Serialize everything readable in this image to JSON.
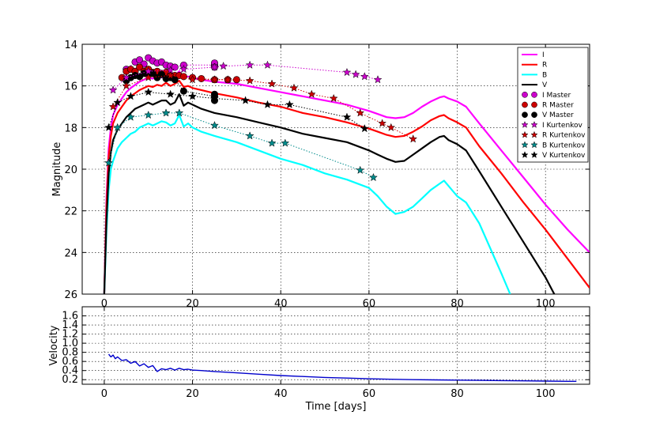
{
  "chart_data": [
    {
      "type": "line",
      "title": "",
      "xlabel": "",
      "ylabel": "Magnitude",
      "xlim": [
        -5,
        110
      ],
      "ylim": [
        26,
        14
      ],
      "y_inverted": true,
      "grid": true,
      "legend_position": "top-right",
      "x_ticks": [
        0,
        20,
        40,
        60,
        80,
        100
      ],
      "x_tick_labels": [
        "0",
        "20",
        "40",
        "60",
        "80",
        "100"
      ],
      "y_ticks": [
        14,
        16,
        18,
        20,
        22,
        24,
        26
      ],
      "y_tick_labels": [
        "14",
        "16",
        "18",
        "20",
        "22",
        "24",
        "26"
      ],
      "series": [
        {
          "name": "I",
          "kind": "model",
          "color": "#ff00ff",
          "x": [
            0,
            0.5,
            1,
            1.5,
            2,
            3,
            4,
            5,
            6,
            7,
            8,
            9,
            10,
            11,
            12,
            13,
            14,
            15,
            16,
            17,
            18,
            19,
            20,
            22,
            25,
            30,
            35,
            40,
            45,
            50,
            55,
            60,
            62,
            64,
            66,
            68,
            70,
            72,
            74,
            76,
            77,
            78,
            80,
            82,
            85,
            90,
            95,
            100,
            105,
            110
          ],
          "y": [
            26,
            21.4,
            19.0,
            18.0,
            17.4,
            16.9,
            16.6,
            16.3,
            16.1,
            15.95,
            15.8,
            15.7,
            15.6,
            15.65,
            15.5,
            15.6,
            15.4,
            15.6,
            15.5,
            15.3,
            15.6,
            15.55,
            15.6,
            15.7,
            15.8,
            15.9,
            16.1,
            16.3,
            16.5,
            16.7,
            16.9,
            17.2,
            17.35,
            17.5,
            17.55,
            17.5,
            17.3,
            17.0,
            16.75,
            16.55,
            16.5,
            16.6,
            16.75,
            17.0,
            17.8,
            19.1,
            20.4,
            21.7,
            22.9,
            24.0
          ]
        },
        {
          "name": "R",
          "kind": "model",
          "color": "#ff0000",
          "x": [
            0,
            0.5,
            1,
            1.5,
            2,
            3,
            4,
            5,
            6,
            7,
            8,
            9,
            10,
            11,
            12,
            13,
            14,
            15,
            16,
            17,
            18,
            19,
            20,
            22,
            25,
            30,
            35,
            40,
            45,
            50,
            55,
            60,
            62,
            64,
            66,
            68,
            70,
            72,
            74,
            76,
            77,
            78,
            80,
            82,
            85,
            90,
            95,
            100,
            105,
            110
          ],
          "y": [
            26,
            21.8,
            19.4,
            18.4,
            17.8,
            17.3,
            17.0,
            16.7,
            16.5,
            16.35,
            16.2,
            16.1,
            16.0,
            16.05,
            15.95,
            16.0,
            15.85,
            16.0,
            15.9,
            15.75,
            16.05,
            16.0,
            16.1,
            16.2,
            16.35,
            16.55,
            16.8,
            17.0,
            17.3,
            17.5,
            17.75,
            18.05,
            18.2,
            18.35,
            18.45,
            18.4,
            18.2,
            17.95,
            17.65,
            17.45,
            17.4,
            17.55,
            17.75,
            18.0,
            18.9,
            20.2,
            21.6,
            22.9,
            24.3,
            25.7
          ]
        },
        {
          "name": "B",
          "kind": "model",
          "color": "#00ffff",
          "x": [
            0,
            0.5,
            1,
            1.5,
            2,
            3,
            4,
            5,
            6,
            7,
            8,
            9,
            10,
            11,
            12,
            13,
            14,
            15,
            16,
            17,
            18,
            19,
            20,
            22,
            25,
            30,
            35,
            40,
            45,
            50,
            55,
            60,
            62,
            64,
            66,
            68,
            70,
            72,
            74,
            76,
            77,
            78,
            80,
            82,
            85,
            90,
            92
          ],
          "y": [
            26,
            23.0,
            21.0,
            20.0,
            19.6,
            19.0,
            18.7,
            18.5,
            18.3,
            18.2,
            18.0,
            17.9,
            17.8,
            17.9,
            17.8,
            17.7,
            17.75,
            17.9,
            17.8,
            17.4,
            17.95,
            17.8,
            18.0,
            18.2,
            18.4,
            18.7,
            19.1,
            19.5,
            19.8,
            20.2,
            20.5,
            20.9,
            21.3,
            21.8,
            22.15,
            22.05,
            21.8,
            21.4,
            21.0,
            20.7,
            20.55,
            20.8,
            21.3,
            21.6,
            22.6,
            25.0,
            26.0
          ]
        },
        {
          "name": "V",
          "kind": "model",
          "color": "#000000",
          "x": [
            0,
            0.5,
            1,
            1.5,
            2,
            3,
            4,
            5,
            6,
            7,
            8,
            9,
            10,
            11,
            12,
            13,
            14,
            15,
            16,
            17,
            18,
            19,
            20,
            22,
            25,
            30,
            35,
            40,
            45,
            50,
            55,
            60,
            62,
            64,
            66,
            68,
            70,
            72,
            74,
            76,
            77,
            78,
            80,
            82,
            85,
            90,
            95,
            100,
            102
          ],
          "y": [
            26,
            22.5,
            20.2,
            19.2,
            18.6,
            18.1,
            17.8,
            17.5,
            17.3,
            17.1,
            17.0,
            16.9,
            16.8,
            16.9,
            16.8,
            16.7,
            16.7,
            16.9,
            16.8,
            16.4,
            16.95,
            16.8,
            16.9,
            17.1,
            17.3,
            17.5,
            17.75,
            18.0,
            18.3,
            18.5,
            18.7,
            19.1,
            19.3,
            19.5,
            19.65,
            19.6,
            19.3,
            19.0,
            18.7,
            18.45,
            18.4,
            18.6,
            18.8,
            19.1,
            20.1,
            21.8,
            23.5,
            25.2,
            26.0
          ]
        },
        {
          "name": "I Master",
          "kind": "circles",
          "color": "#cc00cc",
          "x": [
            5,
            7,
            8,
            9,
            10,
            11,
            12,
            13,
            14,
            15,
            16,
            18,
            25,
            25,
            25
          ],
          "y": [
            15.2,
            14.85,
            14.75,
            14.95,
            14.65,
            14.8,
            14.9,
            14.85,
            15.0,
            15.05,
            15.1,
            15.0,
            15.0,
            14.9,
            15.1
          ]
        },
        {
          "name": "R Master",
          "kind": "circles",
          "color": "#cc0000",
          "x": [
            4,
            5,
            6,
            7,
            8,
            9,
            10,
            11,
            12,
            13,
            14,
            15,
            16,
            17,
            18,
            20,
            22,
            25,
            28,
            30
          ],
          "y": [
            15.6,
            15.3,
            15.2,
            15.3,
            15.1,
            15.3,
            15.2,
            15.35,
            15.3,
            15.4,
            15.35,
            15.5,
            15.5,
            15.5,
            15.55,
            15.6,
            15.65,
            15.7,
            15.7,
            15.7
          ]
        },
        {
          "name": "V Master",
          "kind": "circles",
          "color": "#000000",
          "x": [
            5,
            6,
            7,
            8,
            9,
            10,
            11,
            12,
            13,
            14,
            15,
            16,
            18,
            25,
            25,
            25
          ],
          "y": [
            15.75,
            15.6,
            15.5,
            15.55,
            15.4,
            15.45,
            15.4,
            15.6,
            15.45,
            15.65,
            15.6,
            15.7,
            16.25,
            16.5,
            16.7,
            16.4
          ]
        },
        {
          "name": "I Kurtenkov",
          "kind": "stars",
          "color": "#cc00cc",
          "x": [
            2,
            5,
            10,
            15,
            18,
            25,
            27,
            33,
            37,
            55,
            57,
            59,
            62
          ],
          "y": [
            16.2,
            15.6,
            15.3,
            15.25,
            15.2,
            15.1,
            15.05,
            15.0,
            15.0,
            15.35,
            15.45,
            15.55,
            15.7
          ]
        },
        {
          "name": "R Kurtenkov",
          "kind": "stars",
          "color": "#cc0000",
          "x": [
            2,
            5,
            10,
            15,
            20,
            25,
            28,
            33,
            38,
            43,
            47,
            52,
            58,
            63,
            65,
            70
          ],
          "y": [
            17.0,
            16.0,
            15.6,
            15.5,
            15.7,
            15.7,
            15.7,
            15.75,
            15.9,
            16.1,
            16.4,
            16.6,
            17.3,
            17.8,
            18.0,
            18.55
          ]
        },
        {
          "name": "B Kurtenkov",
          "kind": "stars",
          "color": "#008b8b",
          "x": [
            1,
            3,
            6,
            10,
            14,
            17,
            25,
            33,
            38,
            41,
            58,
            61
          ],
          "y": [
            19.7,
            18.0,
            17.5,
            17.4,
            17.3,
            17.3,
            17.9,
            18.4,
            18.75,
            18.75,
            20.05,
            20.4
          ]
        },
        {
          "name": "V Kurtenkov",
          "kind": "stars",
          "color": "#000000",
          "x": [
            1,
            3,
            6,
            10,
            15,
            20,
            25,
            32,
            37,
            42,
            55,
            59
          ],
          "y": [
            18.0,
            16.8,
            16.5,
            16.3,
            16.4,
            16.5,
            16.6,
            16.7,
            16.9,
            16.9,
            17.5,
            18.05
          ]
        }
      ],
      "legend": [
        "I",
        "R",
        "B",
        "V",
        "I Master",
        "R Master",
        "V Master",
        "I Kurtenkov",
        "R Kurtenkov",
        "B Kurtenkov",
        "V Kurtenkov"
      ]
    },
    {
      "type": "line",
      "title": "",
      "xlabel": "Time [days]",
      "ylabel": "Velocity",
      "xlim": [
        -5,
        110
      ],
      "ylim": [
        0.1,
        1.8
      ],
      "grid": true,
      "x_ticks": [
        0,
        20,
        40,
        60,
        80,
        100
      ],
      "x_tick_labels": [
        "0",
        "20",
        "40",
        "60",
        "80",
        "100"
      ],
      "y_ticks": [
        0.2,
        0.4,
        0.6,
        0.8,
        1.0,
        1.2,
        1.4,
        1.6
      ],
      "y_tick_labels": [
        "0.2",
        "0.4",
        "0.6",
        "0.8",
        "1.0",
        "1.2",
        "1.4",
        "1.6"
      ],
      "series": [
        {
          "color": "#0000cc",
          "x": [
            1,
            1.5,
            2,
            2.5,
            3,
            4,
            5,
            6,
            7,
            8,
            9,
            10,
            11,
            12,
            13,
            14,
            15,
            16,
            17,
            18,
            19,
            20,
            22,
            25,
            30,
            35,
            40,
            45,
            50,
            55,
            60,
            65,
            70,
            75,
            80,
            85,
            90,
            95,
            100,
            105,
            107
          ],
          "y": [
            0.76,
            0.7,
            0.74,
            0.66,
            0.7,
            0.62,
            0.64,
            0.56,
            0.6,
            0.5,
            0.55,
            0.47,
            0.51,
            0.38,
            0.44,
            0.42,
            0.45,
            0.41,
            0.45,
            0.42,
            0.43,
            0.41,
            0.4,
            0.38,
            0.35,
            0.32,
            0.29,
            0.27,
            0.25,
            0.235,
            0.22,
            0.21,
            0.2,
            0.195,
            0.19,
            0.185,
            0.18,
            0.175,
            0.17,
            0.165,
            0.165
          ]
        }
      ]
    }
  ]
}
